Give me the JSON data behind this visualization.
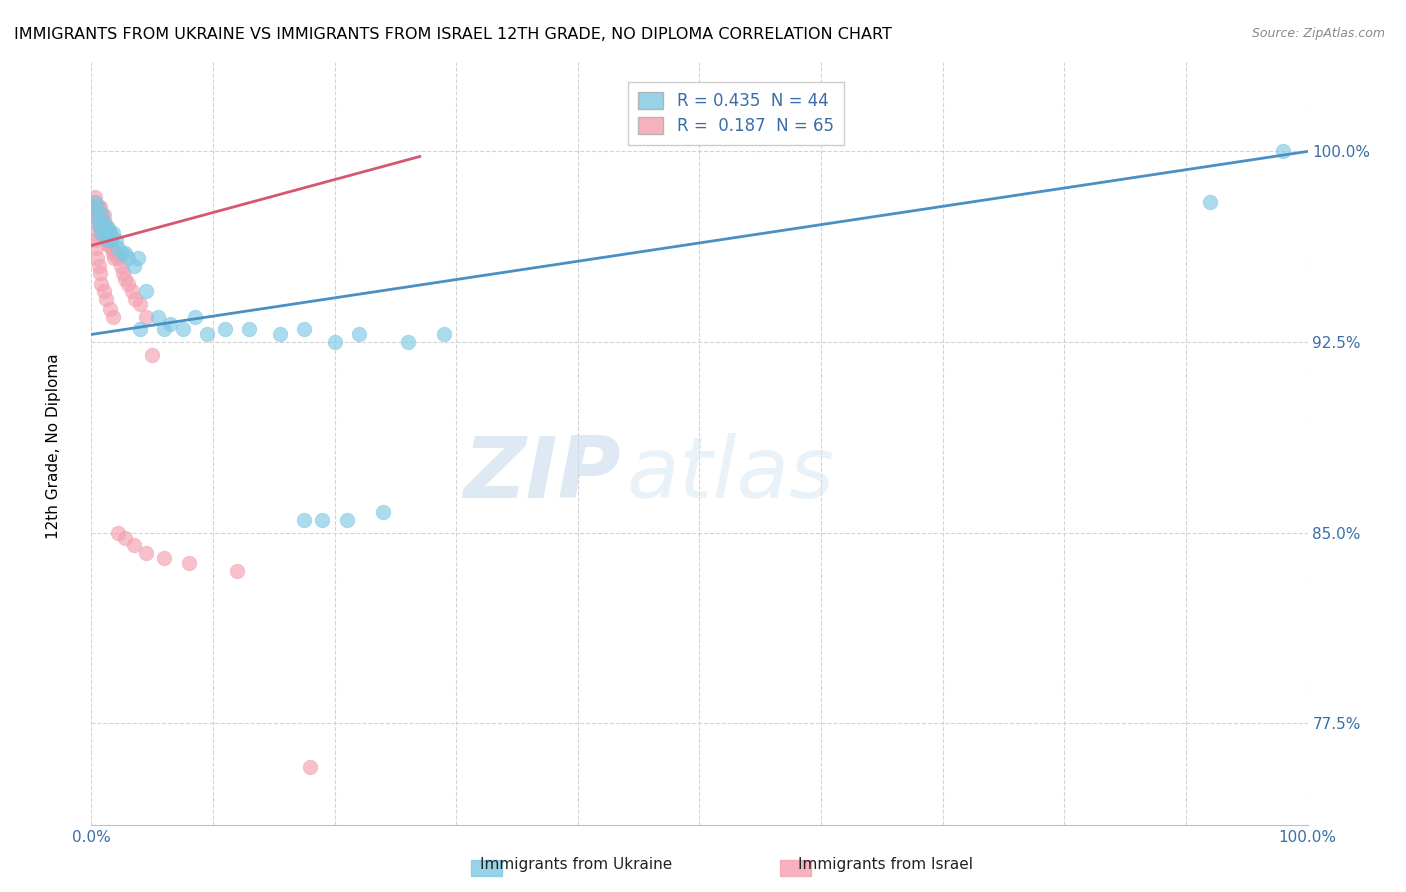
{
  "title": "IMMIGRANTS FROM UKRAINE VS IMMIGRANTS FROM ISRAEL 12TH GRADE, NO DIPLOMA CORRELATION CHART",
  "source": "Source: ZipAtlas.com",
  "ylabel": "12th Grade, No Diploma",
  "ukraine_color": "#7ec8e3",
  "israel_color": "#f4a0b0",
  "ukraine_line_color": "#4a90c4",
  "israel_line_color": "#d45870",
  "watermark_zip": "ZIP",
  "watermark_atlas": "atlas",
  "xlim": [
    0.0,
    1.0
  ],
  "ylim": [
    0.735,
    1.035
  ],
  "yticks": [
    0.775,
    0.85,
    0.925,
    1.0
  ],
  "ytick_labels": [
    "77.5%",
    "85.0%",
    "92.5%",
    "100.0%"
  ],
  "xticks": [
    0.0,
    0.1,
    0.2,
    0.3,
    0.4,
    0.5,
    0.6,
    0.7,
    0.8,
    0.9,
    1.0
  ],
  "ukraine_x": [
    0.003,
    0.004,
    0.005,
    0.006,
    0.007,
    0.008,
    0.009,
    0.01,
    0.011,
    0.012,
    0.013,
    0.014,
    0.015,
    0.016,
    0.018,
    0.02,
    0.022,
    0.025,
    0.028,
    0.03,
    0.035,
    0.038,
    0.04,
    0.045,
    0.055,
    0.06,
    0.065,
    0.075,
    0.085,
    0.095,
    0.11,
    0.13,
    0.155,
    0.175,
    0.2,
    0.22,
    0.175,
    0.19,
    0.21,
    0.24,
    0.26,
    0.29,
    0.92,
    0.98
  ],
  "ukraine_y": [
    0.98,
    0.975,
    0.978,
    0.972,
    0.97,
    0.968,
    0.975,
    0.972,
    0.97,
    0.968,
    0.965,
    0.97,
    0.968,
    0.965,
    0.968,
    0.965,
    0.962,
    0.96,
    0.96,
    0.958,
    0.955,
    0.958,
    0.93,
    0.945,
    0.935,
    0.93,
    0.932,
    0.93,
    0.935,
    0.928,
    0.93,
    0.93,
    0.928,
    0.93,
    0.925,
    0.928,
    0.855,
    0.855,
    0.855,
    0.858,
    0.925,
    0.928,
    0.98,
    1.0
  ],
  "israel_x": [
    0.002,
    0.003,
    0.003,
    0.004,
    0.004,
    0.005,
    0.005,
    0.005,
    0.006,
    0.006,
    0.006,
    0.007,
    0.007,
    0.007,
    0.008,
    0.008,
    0.008,
    0.009,
    0.009,
    0.01,
    0.01,
    0.011,
    0.011,
    0.012,
    0.012,
    0.013,
    0.013,
    0.014,
    0.014,
    0.015,
    0.015,
    0.016,
    0.017,
    0.018,
    0.019,
    0.02,
    0.022,
    0.024,
    0.026,
    0.028,
    0.03,
    0.033,
    0.036,
    0.04,
    0.045,
    0.002,
    0.003,
    0.004,
    0.005,
    0.006,
    0.007,
    0.008,
    0.01,
    0.012,
    0.015,
    0.018,
    0.022,
    0.028,
    0.035,
    0.045,
    0.06,
    0.08,
    0.12,
    0.18,
    0.05
  ],
  "israel_y": [
    0.98,
    0.982,
    0.978,
    0.978,
    0.975,
    0.978,
    0.975,
    0.972,
    0.978,
    0.975,
    0.972,
    0.978,
    0.975,
    0.97,
    0.975,
    0.972,
    0.968,
    0.972,
    0.968,
    0.975,
    0.97,
    0.972,
    0.968,
    0.97,
    0.965,
    0.97,
    0.965,
    0.968,
    0.963,
    0.968,
    0.963,
    0.965,
    0.962,
    0.96,
    0.958,
    0.96,
    0.958,
    0.955,
    0.952,
    0.95,
    0.948,
    0.945,
    0.942,
    0.94,
    0.935,
    0.968,
    0.965,
    0.962,
    0.958,
    0.955,
    0.952,
    0.948,
    0.945,
    0.942,
    0.938,
    0.935,
    0.85,
    0.848,
    0.845,
    0.842,
    0.84,
    0.838,
    0.835,
    0.758,
    0.92
  ]
}
